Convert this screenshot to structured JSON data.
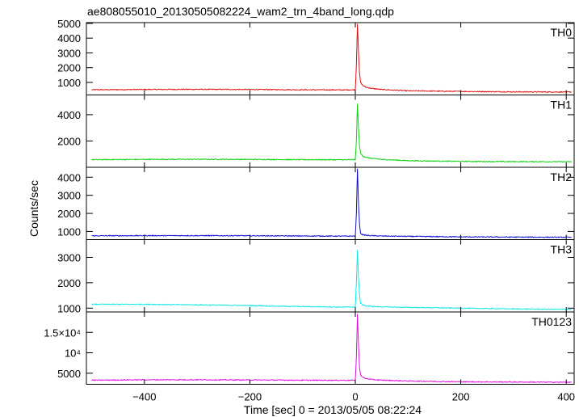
{
  "chart_data": {
    "type": "line",
    "title": "ae808055010_20130505082224_wam2_trn_4band_long.qdp",
    "xlabel": "Time [sec] 0 = 2013/05/05 08:22:24",
    "ylabel": "Counts/sec",
    "xlim": [
      -510,
      415
    ],
    "x_ticks": [
      -400,
      -200,
      0,
      200,
      400
    ],
    "x_tick_labels": [
      "−400",
      "−200",
      "0",
      "200",
      "400"
    ],
    "grid": false,
    "panels": [
      {
        "name": "TH0",
        "color": "#e01010",
        "ylim": [
          150,
          5050
        ],
        "y_ticks": [
          1000,
          2000,
          3000,
          4000,
          5000
        ],
        "y_tick_labels": [
          "1000",
          "2000",
          "3000",
          "4000",
          "5000"
        ],
        "x": [
          -500,
          -400,
          -300,
          -200,
          -100,
          -50,
          -20,
          0,
          2,
          4,
          6,
          8,
          10,
          14,
          20,
          30,
          50,
          100,
          200,
          300,
          410
        ],
        "y": [
          500,
          520,
          530,
          520,
          500,
          495,
          490,
          500,
          2200,
          5000,
          3100,
          1600,
          1000,
          800,
          680,
          600,
          520,
          430,
          390,
          360,
          350
        ]
      },
      {
        "name": "TH1",
        "color": "#10d010",
        "ylim": [
          0,
          5500
        ],
        "y_ticks": [
          2000,
          4000
        ],
        "y_tick_labels": [
          "2000",
          "4000"
        ],
        "x": [
          -500,
          -400,
          -300,
          -200,
          -100,
          -50,
          -20,
          0,
          2,
          4,
          6,
          8,
          10,
          14,
          20,
          30,
          50,
          100,
          200,
          300,
          410
        ],
        "y": [
          580,
          600,
          610,
          600,
          580,
          575,
          570,
          580,
          2000,
          4800,
          3000,
          1600,
          1050,
          860,
          760,
          680,
          600,
          500,
          450,
          430,
          420
        ]
      },
      {
        "name": "TH2",
        "color": "#1010d0",
        "ylim": [
          550,
          4550
        ],
        "y_ticks": [
          1000,
          2000,
          3000,
          4000
        ],
        "y_tick_labels": [
          "1000",
          "2000",
          "3000",
          "4000"
        ],
        "x": [
          -500,
          -400,
          -300,
          -200,
          -100,
          -50,
          -20,
          0,
          2,
          4,
          6,
          8,
          10,
          14,
          20,
          30,
          50,
          100,
          200,
          300,
          410
        ],
        "y": [
          760,
          770,
          770,
          765,
          750,
          745,
          740,
          750,
          2000,
          4450,
          2600,
          1400,
          900,
          820,
          790,
          770,
          750,
          730,
          700,
          690,
          680
        ]
      },
      {
        "name": "TH3",
        "color": "#10e8e8",
        "ylim": [
          850,
          3700
        ],
        "y_ticks": [
          1000,
          2000,
          3000
        ],
        "y_tick_labels": [
          "1000",
          "2000",
          "3000"
        ],
        "x": [
          -500,
          -400,
          -300,
          -200,
          -100,
          -50,
          -20,
          0,
          2,
          4,
          6,
          8,
          10,
          14,
          20,
          30,
          50,
          100,
          200,
          300,
          410
        ],
        "y": [
          1150,
          1150,
          1130,
          1100,
          1060,
          1050,
          1040,
          1050,
          2000,
          3300,
          2200,
          1500,
          1200,
          1120,
          1090,
          1070,
          1050,
          1030,
          1000,
          970,
          950
        ]
      },
      {
        "name": "TH0123",
        "color": "#e010e0",
        "ylim": [
          2300,
          20000
        ],
        "y_ticks": [
          5000,
          10000,
          15000
        ],
        "y_tick_labels": [
          "5000",
          "10⁴",
          "1.5×10⁴"
        ],
        "x": [
          -500,
          -400,
          -300,
          -200,
          -100,
          -50,
          -20,
          0,
          2,
          4,
          6,
          8,
          10,
          14,
          20,
          30,
          50,
          100,
          200,
          300,
          410
        ],
        "y": [
          3300,
          3400,
          3400,
          3350,
          3300,
          3280,
          3270,
          3300,
          9000,
          19500,
          12000,
          6500,
          4600,
          4000,
          3700,
          3500,
          3300,
          3100,
          2900,
          2850,
          2800
        ]
      }
    ]
  }
}
